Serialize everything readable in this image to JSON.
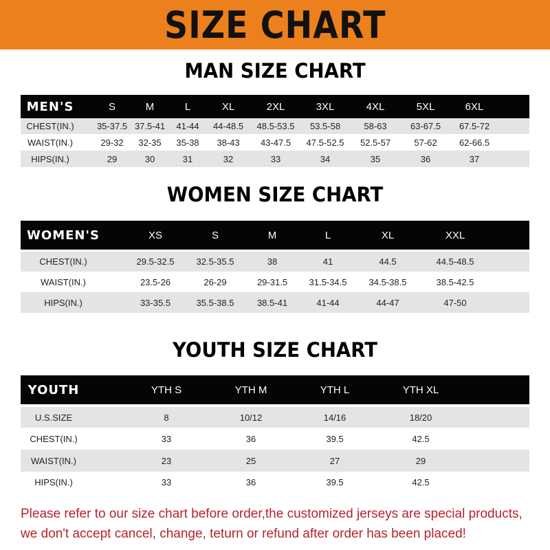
{
  "banner": {
    "title": "SIZE CHART",
    "color": "#ec801c"
  },
  "men": {
    "title": "MAN SIZE CHART",
    "header": [
      "MEN'S",
      "S",
      "M",
      "L",
      "XL",
      "2XL",
      "3XL",
      "4XL",
      "5XL",
      "6XL"
    ],
    "rows": [
      [
        "CHEST(IN.)",
        "35-37.5",
        "37.5-41",
        "41-44",
        "44-48.5",
        "48.5-53.5",
        "53.5-58",
        "58-63",
        "63-67.5",
        "67.5-72"
      ],
      [
        "WAIST(IN.)",
        "29-32",
        "32-35",
        "35-38",
        "38-43",
        "43-47.5",
        "47.5-52.5",
        "52.5-57",
        "57-62",
        "62-66.5"
      ],
      [
        "HIPS(IN.)",
        "29",
        "30",
        "31",
        "32",
        "33",
        "34",
        "35",
        "36",
        "37"
      ]
    ]
  },
  "women": {
    "title": "WOMEN SIZE CHART",
    "header": [
      "WOMEN'S",
      "XS",
      "S",
      "M",
      "L",
      "XL",
      "XXL"
    ],
    "rows": [
      [
        "CHEST(IN.)",
        "29.5-32.5",
        "32.5-35.5",
        "38",
        "41",
        "44.5",
        "44.5-48.5"
      ],
      [
        "WAIST(IN.)",
        "23.5-26",
        "26-29",
        "29-31.5",
        "31.5-34.5",
        "34.5-38.5",
        "38.5-42.5"
      ],
      [
        "HIPS(IN.)",
        "33-35.5",
        "35.5-38.5",
        "38.5-41",
        "41-44",
        "44-47",
        "47-50"
      ]
    ]
  },
  "youth": {
    "title": "YOUTH SIZE CHART",
    "header": [
      "YOUTH",
      "YTH S",
      "YTH M",
      "YTH L",
      "YTH XL"
    ],
    "rows": [
      [
        "U.S.SIZE",
        "8",
        "10/12",
        "14/16",
        "18/20"
      ],
      [
        "CHEST(IN.)",
        "33",
        "36",
        "39.5",
        "42.5"
      ],
      [
        "WAIST(IN.)",
        "23",
        "25",
        "27",
        "29"
      ],
      [
        "HIPS(IN.)",
        "33",
        "36",
        "39.5",
        "42.5"
      ]
    ]
  },
  "notice": {
    "line1": "Please refer to our size chart before order,the customized jerseys are special products,",
    "line2": "we don't accept cancel, change, teturn or refund after order has been placed!",
    "color": "#b8232b"
  }
}
